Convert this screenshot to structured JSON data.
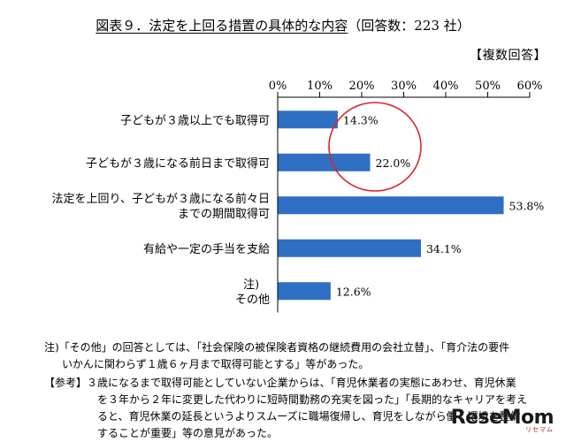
{
  "header": {
    "title": "図表９．法定を上回る措置の具体的な内容",
    "subtitle": "（回答数：223 社）",
    "multi": "【複数回答】"
  },
  "chart_data": {
    "type": "bar",
    "orientation": "horizontal",
    "categories": [
      [
        "子どもが３歳以上でも取得可"
      ],
      [
        "子どもが３歳になる前日まで取得可"
      ],
      [
        "法定を上回り、子どもが３歳になる前々日",
        "までの期間取得可"
      ],
      [
        "有給や一定の手当を支給"
      ],
      [
        "注)",
        "その他"
      ]
    ],
    "values": [
      14.3,
      22.0,
      53.8,
      34.1,
      12.6
    ],
    "value_labels": [
      "14.3%",
      "22.0%",
      "53.8%",
      "34.1%",
      "12.6%"
    ],
    "ticks": [
      0,
      10,
      20,
      30,
      40,
      50,
      60
    ],
    "tick_labels": [
      "0%",
      "10%",
      "20%",
      "30%",
      "40%",
      "50%",
      "60%"
    ],
    "xlim": [
      0,
      60
    ],
    "bar_color": "#2e6fc4",
    "highlight_color": "#d8262c",
    "grid": false
  },
  "notes": {
    "note1_a": "注)「その他」の回答としては、「社会保険の被保険者資格の継続費用の会社立替」、「育介法の要件",
    "note1_b": "いかんに関わらず１歳６ヶ月まで取得可能とする」等があった。",
    "ref_a": "【参考】３歳になるまで取得可能としていない企業からは、「育児休業者の実態にあわせ、育児休業",
    "ref_b": "を３年から２年に変更した代わりに短時間勤務の充実を図った」「長期的なキャリアを考え",
    "ref_c": "ると、育児休業の延長というよりスムーズに職場復帰し、育児をしながら働く環境を整備",
    "ref_d": "することが重要」等の意見があった。"
  },
  "watermark": {
    "text": "ReseMom",
    "sub": "リセマム"
  }
}
